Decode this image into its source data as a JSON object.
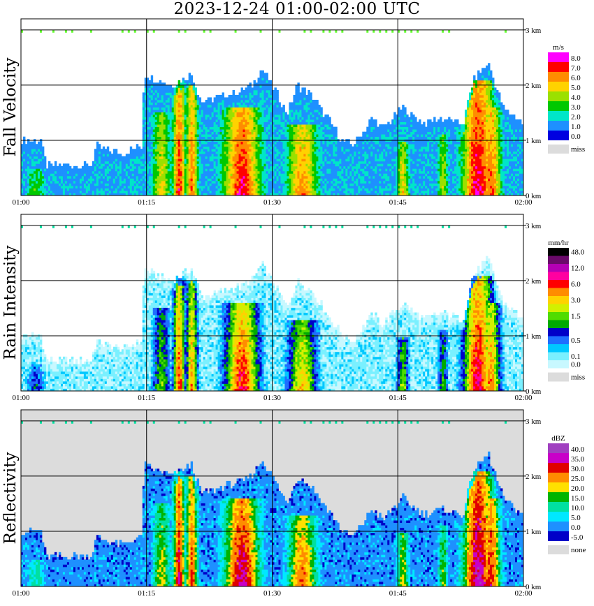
{
  "title": "2023-12-24   01:00-02:00 UTC",
  "chart_data": [
    {
      "type": "heatmap",
      "ylabel": "Fall Velocity",
      "x_ticks": [
        "01:00",
        "01:15",
        "01:30",
        "01:45",
        "02:00"
      ],
      "y_ticks": [
        "0 km",
        "1 km",
        "2 km",
        "3 km"
      ],
      "ylim_km": [
        0,
        3.2
      ],
      "background": "#ffffff",
      "legend": {
        "unit": "m/s",
        "levels": [
          {
            "label": "8.0",
            "color": "#ff00ff"
          },
          {
            "label": "7.0",
            "color": "#ff0000"
          },
          {
            "label": "6.0",
            "color": "#ff8c00"
          },
          {
            "label": "5.0",
            "color": "#ffd200"
          },
          {
            "label": "4.0",
            "color": "#9be000"
          },
          {
            "label": "3.0",
            "color": "#00c800"
          },
          {
            "label": "2.0",
            "color": "#00e6c8"
          },
          {
            "label": "1.0",
            "color": "#1e90ff"
          },
          {
            "label": "0.0",
            "color": "#0000e0"
          }
        ],
        "missing_label": "miss",
        "missing_color": "#dcdcdc"
      }
    },
    {
      "type": "heatmap",
      "ylabel": "Rain Intensity",
      "x_ticks": [
        "01:00",
        "01:15",
        "01:30",
        "01:45",
        "02:00"
      ],
      "y_ticks": [
        "0 km",
        "1 km",
        "2 km",
        "3 km"
      ],
      "ylim_km": [
        0,
        3.2
      ],
      "background": "#ffffff",
      "legend": {
        "unit": "mm/hr",
        "levels": [
          {
            "label": "48.0",
            "color": "#000000"
          },
          {
            "label": "",
            "color": "#6a0a6a"
          },
          {
            "label": "12.0",
            "color": "#b400b4"
          },
          {
            "label": "",
            "color": "#ff00a0"
          },
          {
            "label": "6.0",
            "color": "#ff0000"
          },
          {
            "label": "",
            "color": "#ff8c00"
          },
          {
            "label": "3.0",
            "color": "#ffd200"
          },
          {
            "label": "",
            "color": "#d2f000"
          },
          {
            "label": "1.5",
            "color": "#50dc00"
          },
          {
            "label": "",
            "color": "#00aa00"
          },
          {
            "label": "",
            "color": "#0000c8"
          },
          {
            "label": "0.5",
            "color": "#1e6eff"
          },
          {
            "label": "",
            "color": "#00c8ff"
          },
          {
            "label": "0.1",
            "color": "#7af0ff"
          },
          {
            "label": "0.0",
            "color": "#c8f8ff"
          }
        ],
        "missing_label": "miss",
        "missing_color": "#dcdcdc"
      }
    },
    {
      "type": "heatmap",
      "ylabel": "Reflectivity",
      "x_ticks": [
        "01:00",
        "01:15",
        "01:30",
        "01:45",
        "02:00"
      ],
      "y_ticks": [
        "0 km",
        "1 km",
        "2 km",
        "3 km"
      ],
      "ylim_km": [
        0,
        3.2
      ],
      "background": "#dcdcdc",
      "legend": {
        "unit": "dBZ",
        "levels": [
          {
            "label": "40.0",
            "color": "#a040c0"
          },
          {
            "label": "35.0",
            "color": "#c800c8"
          },
          {
            "label": "30.0",
            "color": "#e00000"
          },
          {
            "label": "25.0",
            "color": "#ff8c00"
          },
          {
            "label": "20.0",
            "color": "#ffe000"
          },
          {
            "label": "15.0",
            "color": "#00b400"
          },
          {
            "label": "10.0",
            "color": "#00e0a0"
          },
          {
            "label": "5.0",
            "color": "#00e8ff"
          },
          {
            "label": "0.0",
            "color": "#1e90ff"
          },
          {
            "label": "-5.0",
            "color": "#0000c8"
          }
        ],
        "missing_label": "none",
        "missing_color": "#dcdcdc"
      }
    }
  ]
}
